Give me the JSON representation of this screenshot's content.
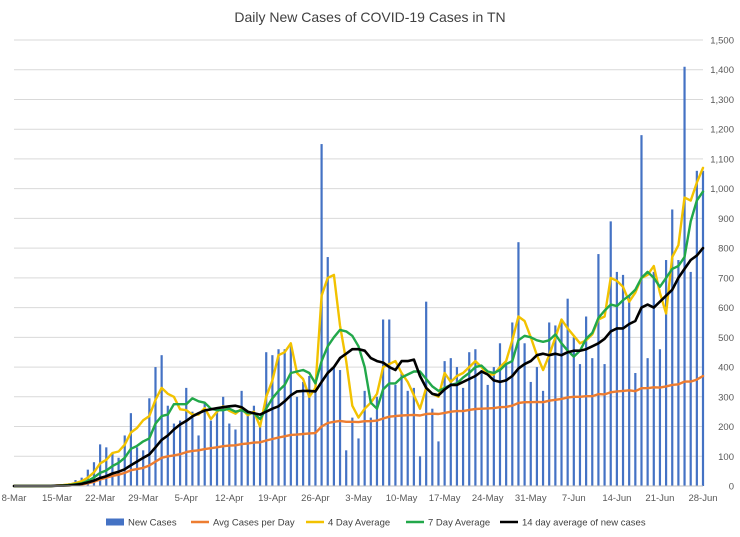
{
  "chart_data": {
    "type": "bar",
    "title": "Daily New Cases of COVID-19 Cases in TN",
    "xlabel": "",
    "ylabel": "",
    "ylim": [
      0,
      1500
    ],
    "y_ticks": [
      "0",
      "100",
      "200",
      "300",
      "400",
      "500",
      "600",
      "700",
      "800",
      "900",
      "1,000",
      "1,100",
      "1,200",
      "1,300",
      "1,400",
      "1,500"
    ],
    "x_tick_labels": [
      "8-Mar",
      "15-Mar",
      "22-Mar",
      "29-Mar",
      "5-Apr",
      "12-Apr",
      "19-Apr",
      "26-Apr",
      "3-May",
      "10-May",
      "17-May",
      "24-May",
      "31-May",
      "7-Jun",
      "14-Jun",
      "21-Jun",
      "28-Jun"
    ],
    "x_start": "8-Mar",
    "x_end": "29-Jun",
    "grid": true,
    "legend_position": "bottom",
    "series": [
      {
        "name": "New Cases",
        "kind": "bar",
        "color": "#4472c4",
        "values": [
          0,
          0,
          0,
          0,
          0,
          0,
          1,
          4,
          6,
          10,
          20,
          28,
          55,
          80,
          140,
          130,
          110,
          95,
          170,
          245,
          130,
          120,
          295,
          400,
          440,
          270,
          210,
          220,
          330,
          250,
          170,
          280,
          220,
          250,
          300,
          210,
          190,
          320,
          240,
          270,
          210,
          450,
          440,
          460,
          460,
          470,
          300,
          350,
          370,
          320,
          1150,
          770,
          400,
          390,
          120,
          230,
          160,
          320,
          230,
          300,
          560,
          560,
          340,
          380,
          320,
          330,
          100,
          620,
          260,
          150,
          420,
          430,
          400,
          330,
          450,
          460,
          390,
          340,
          400,
          480,
          410,
          550,
          820,
          480,
          350,
          400,
          320,
          550,
          540,
          560,
          630,
          500,
          410,
          570,
          430,
          780,
          410,
          890,
          720,
          710,
          640,
          380,
          1180,
          430,
          720,
          460,
          760,
          930,
          760,
          1410,
          720,
          1060,
          1060
        ]
      },
      {
        "name": "Avg Cases per Day",
        "kind": "line",
        "color": "#ed7d31",
        "values": [
          0,
          0,
          0,
          0,
          0,
          0,
          0,
          1,
          1,
          2,
          3,
          5,
          9,
          14,
          22,
          28,
          34,
          38,
          44,
          53,
          57,
          61,
          69,
          82,
          95,
          100,
          103,
          107,
          114,
          118,
          120,
          124,
          127,
          130,
          134,
          136,
          137,
          141,
          143,
          146,
          147,
          153,
          158,
          163,
          167,
          172,
          173,
          175,
          177,
          178,
          200,
          212,
          216,
          219,
          216,
          216,
          215,
          218,
          218,
          220,
          227,
          233,
          235,
          237,
          238,
          239,
          237,
          242,
          243,
          242,
          246,
          250,
          252,
          252,
          256,
          259,
          260,
          261,
          262,
          265,
          266,
          270,
          279,
          282,
          282,
          283,
          282,
          287,
          290,
          293,
          298,
          300,
          300,
          302,
          302,
          309,
          308,
          315,
          318,
          320,
          322,
          319,
          329,
          329,
          332,
          331,
          335,
          340,
          342,
          351,
          351,
          358,
          370
        ]
      },
      {
        "name": "4 Day Average",
        "kind": "line",
        "color": "#f2c200",
        "values": [
          0,
          0,
          0,
          0,
          0,
          0,
          0,
          2,
          3,
          5,
          10,
          16,
          28,
          46,
          76,
          88,
          111,
          116,
          139,
          180,
          195,
          221,
          235,
          290,
          330,
          310,
          300,
          258,
          255,
          240,
          240,
          262,
          225,
          250,
          268,
          253,
          243,
          260,
          238,
          250,
          200,
          300,
          355,
          440,
          450,
          480,
          380,
          360,
          300,
          330,
          640,
          700,
          710,
          540,
          420,
          270,
          230,
          260,
          280,
          310,
          400,
          410,
          420,
          380,
          350,
          305,
          260,
          330,
          310,
          300,
          380,
          350,
          370,
          380,
          400,
          420,
          400,
          375,
          375,
          400,
          420,
          490,
          570,
          555,
          500,
          440,
          390,
          440,
          500,
          560,
          530,
          505,
          480,
          490,
          510,
          560,
          570,
          700,
          690,
          670,
          620,
          650,
          700,
          710,
          740,
          650,
          580,
          770,
          810,
          970,
          960,
          1020,
          1070
        ]
      },
      {
        "name": "7 Day Average",
        "kind": "line",
        "color": "#22a84a",
        "values": [
          0,
          0,
          0,
          0,
          0,
          0,
          0,
          1,
          2,
          3,
          6,
          9,
          17,
          29,
          44,
          52,
          67,
          78,
          95,
          125,
          135,
          150,
          160,
          210,
          235,
          240,
          275,
          275,
          275,
          295,
          285,
          280,
          260,
          255,
          255,
          260,
          250,
          255,
          245,
          245,
          225,
          260,
          295,
          320,
          340,
          380,
          385,
          390,
          380,
          345,
          420,
          470,
          500,
          525,
          520,
          505,
          470,
          400,
          280,
          260,
          325,
          345,
          345,
          365,
          375,
          385,
          385,
          360,
          335,
          320,
          330,
          340,
          345,
          365,
          380,
          400,
          405,
          385,
          380,
          390,
          410,
          420,
          490,
          505,
          500,
          490,
          485,
          490,
          510,
          480,
          455,
          435,
          455,
          495,
          515,
          565,
          590,
          610,
          605,
          625,
          640,
          660,
          700,
          720,
          700,
          670,
          700,
          730,
          740,
          770,
          890,
          960,
          990
        ]
      },
      {
        "name": "14 day average of new cases",
        "kind": "line",
        "color": "#000000",
        "values": [
          0,
          0,
          0,
          0,
          0,
          0,
          0,
          1,
          1,
          2,
          4,
          7,
          12,
          18,
          27,
          33,
          42,
          48,
          56,
          70,
          82,
          95,
          106,
          130,
          155,
          170,
          190,
          207,
          219,
          234,
          245,
          254,
          258,
          262,
          265,
          268,
          270,
          265,
          250,
          245,
          240,
          250,
          260,
          268,
          285,
          305,
          318,
          320,
          320,
          318,
          350,
          380,
          400,
          430,
          445,
          460,
          460,
          455,
          430,
          420,
          415,
          400,
          390,
          420,
          420,
          425,
          370,
          330,
          310,
          305,
          325,
          340,
          340,
          350,
          360,
          370,
          385,
          375,
          355,
          350,
          355,
          370,
          395,
          410,
          420,
          440,
          445,
          440,
          445,
          440,
          450,
          455,
          455,
          460,
          470,
          480,
          495,
          520,
          530,
          530,
          545,
          555,
          600,
          610,
          600,
          620,
          640,
          660,
          700,
          730,
          760,
          775,
          800
        ]
      }
    ]
  }
}
